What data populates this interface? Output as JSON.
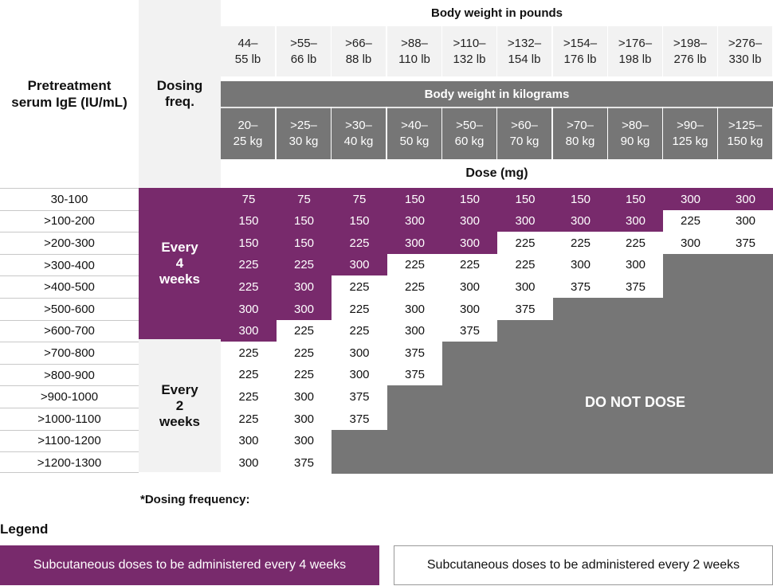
{
  "header": {
    "ige_label": "Pretreatment serum IgE (IU/mL)",
    "dosing_freq_label": "Dosing freq.",
    "weight_lb_label": "Body weight in pounds",
    "weight_kg_label": "Body weight in kilograms",
    "dose_label": "Dose (mg)"
  },
  "weight_columns": [
    {
      "lb_line1": "44–",
      "lb_line2": "55 lb",
      "kg_line1": "20–",
      "kg_line2": "25 kg"
    },
    {
      "lb_line1": ">55–",
      "lb_line2": "66 lb",
      "kg_line1": ">25–",
      "kg_line2": "30 kg"
    },
    {
      "lb_line1": ">66–",
      "lb_line2": "88 lb",
      "kg_line1": ">30–",
      "kg_line2": "40 kg"
    },
    {
      "lb_line1": ">88–",
      "lb_line2": "110 lb",
      "kg_line1": ">40–",
      "kg_line2": "50 kg"
    },
    {
      "lb_line1": ">110–",
      "lb_line2": "132 lb",
      "kg_line1": ">50–",
      "kg_line2": "60 kg"
    },
    {
      "lb_line1": ">132–",
      "lb_line2": "154 lb",
      "kg_line1": ">60–",
      "kg_line2": "70 kg"
    },
    {
      "lb_line1": ">154–",
      "lb_line2": "176 lb",
      "kg_line1": ">70–",
      "kg_line2": "80 kg"
    },
    {
      "lb_line1": ">176–",
      "lb_line2": "198 lb",
      "kg_line1": ">80–",
      "kg_line2": "90 kg"
    },
    {
      "lb_line1": ">198–",
      "lb_line2": "276 lb",
      "kg_line1": ">90–",
      "kg_line2": "125 kg"
    },
    {
      "lb_line1": ">276–",
      "lb_line2": "330 lb",
      "kg_line1": ">125–",
      "kg_line2": "150 kg"
    }
  ],
  "frequency_groups": {
    "every4": {
      "line1": "Every",
      "line2": "4",
      "line3": "weeks"
    },
    "every2": {
      "line1": "Every",
      "line2": "2",
      "line3": "weeks"
    }
  },
  "rows": [
    {
      "ige": "30-100",
      "doses": [
        "75",
        "75",
        "75",
        "150",
        "150",
        "150",
        "150",
        "150",
        "300",
        "300"
      ],
      "every4_cols": 10
    },
    {
      "ige": ">100-200",
      "doses": [
        "150",
        "150",
        "150",
        "300",
        "300",
        "300",
        "300",
        "300",
        "225",
        "300"
      ],
      "every4_cols": 8
    },
    {
      "ige": ">200-300",
      "doses": [
        "150",
        "150",
        "225",
        "300",
        "300",
        "225",
        "225",
        "225",
        "300",
        "375"
      ],
      "every4_cols": 5
    },
    {
      "ige": ">300-400",
      "doses": [
        "225",
        "225",
        "300",
        "225",
        "225",
        "225",
        "300",
        "300"
      ],
      "every4_cols": 3
    },
    {
      "ige": ">400-500",
      "doses": [
        "225",
        "300",
        "225",
        "225",
        "300",
        "300",
        "375",
        "375"
      ],
      "every4_cols": 2
    },
    {
      "ige": ">500-600",
      "doses": [
        "300",
        "300",
        "225",
        "300",
        "300",
        "375"
      ],
      "every4_cols": 2
    },
    {
      "ige": ">600-700",
      "doses": [
        "300",
        "225",
        "225",
        "300",
        "375"
      ],
      "every4_cols": 1
    },
    {
      "ige": ">700-800",
      "doses": [
        "225",
        "225",
        "300",
        "375"
      ],
      "every4_cols": 0
    },
    {
      "ige": ">800-900",
      "doses": [
        "225",
        "225",
        "300",
        "375"
      ],
      "every4_cols": 0
    },
    {
      "ige": ">900-1000",
      "doses": [
        "225",
        "300",
        "375"
      ],
      "every4_cols": 0
    },
    {
      "ige": ">1000-1100",
      "doses": [
        "225",
        "300",
        "375"
      ],
      "every4_cols": 0
    },
    {
      "ige": ">1100-1200",
      "doses": [
        "300",
        "300"
      ],
      "every4_cols": 0
    },
    {
      "ige": ">1200-1300",
      "doses": [
        "300",
        "375"
      ],
      "every4_cols": 0
    }
  ],
  "do_not_dose_label": "DO NOT DOSE",
  "footnote": "*Dosing frequency:",
  "legend": {
    "title": "Legend",
    "every4_text": "Subcutaneous doses to be administered every 4 weeks",
    "every2_text": "Subcutaneous doses to be administered every 2 weeks"
  },
  "colors": {
    "purple": "#782a6c",
    "grey": "#767676",
    "light_grey": "#f2f2f2"
  }
}
